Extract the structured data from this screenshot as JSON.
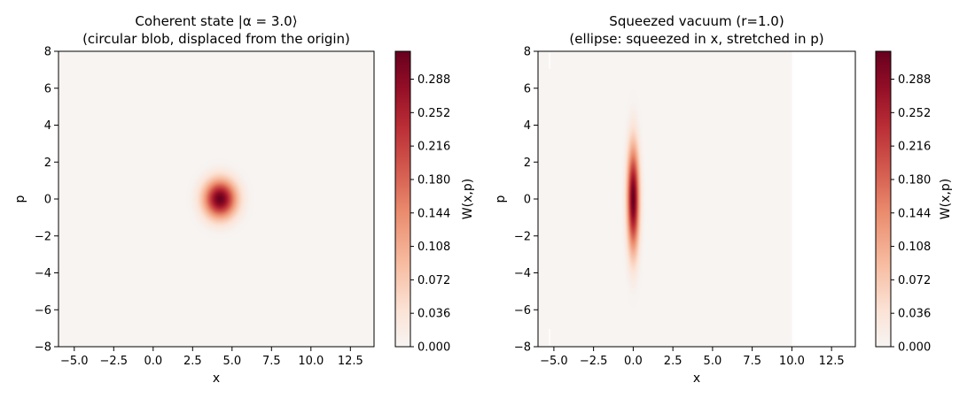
{
  "chart_data": [
    {
      "type": "heatmap",
      "title": "Coherent state |α = 3.0⟩",
      "subtitle": "(circular blob, displaced from the origin)",
      "xlabel": "x",
      "ylabel": "p",
      "xlim": [
        -6,
        14
      ],
      "ylim": [
        -8,
        8
      ],
      "x_ticks": [
        "−5.0",
        "−2.5",
        "0.0",
        "2.5",
        "5.0",
        "7.5",
        "10.0",
        "12.5"
      ],
      "y_ticks": [
        "−8",
        "−6",
        "−4",
        "−2",
        "0",
        "2",
        "4",
        "6",
        "8"
      ],
      "grid": false,
      "colormap": "RdBu_r (positive half, white to dark red)",
      "colorbar": {
        "label": "W(x,p)",
        "ticks": [
          "0.000",
          "0.036",
          "0.072",
          "0.108",
          "0.144",
          "0.180",
          "0.216",
          "0.252",
          "0.288"
        ],
        "range": [
          0,
          0.318
        ]
      },
      "data_extent_x": [
        -6,
        14
      ],
      "blob": {
        "center_x": 4.24,
        "center_p": 0.0,
        "sigma_x": 0.707,
        "sigma_p": 0.707,
        "peak": 0.318
      }
    },
    {
      "type": "heatmap",
      "title": "Squeezed vacuum (r=1.0)",
      "subtitle": "(ellipse: squeezed in x, stretched in p)",
      "xlabel": "x",
      "ylabel": "p",
      "xlim": [
        -6,
        14
      ],
      "ylim": [
        -8,
        8
      ],
      "x_ticks": [
        "−5.0",
        "−2.5",
        "0.0",
        "2.5",
        "5.0",
        "7.5",
        "10.0",
        "12.5"
      ],
      "y_ticks": [
        "−8",
        "−6",
        "−4",
        "−2",
        "0",
        "2",
        "4",
        "6",
        "8"
      ],
      "grid": false,
      "colormap": "RdBu_r (positive half, white to dark red)",
      "colorbar": {
        "label": "W(x,p)",
        "ticks": [
          "0.000",
          "0.036",
          "0.072",
          "0.108",
          "0.144",
          "0.180",
          "0.216",
          "0.252",
          "0.288"
        ],
        "range": [
          0,
          0.318
        ]
      },
      "data_extent_x": [
        -6,
        10
      ],
      "blob": {
        "center_x": 0.0,
        "center_p": 0.0,
        "sigma_x": 0.26,
        "sigma_p": 1.92,
        "peak": 0.318
      }
    }
  ],
  "colors": {
    "low": "#f7f4f2",
    "mid": "#f4a582",
    "high": "#67001f"
  }
}
